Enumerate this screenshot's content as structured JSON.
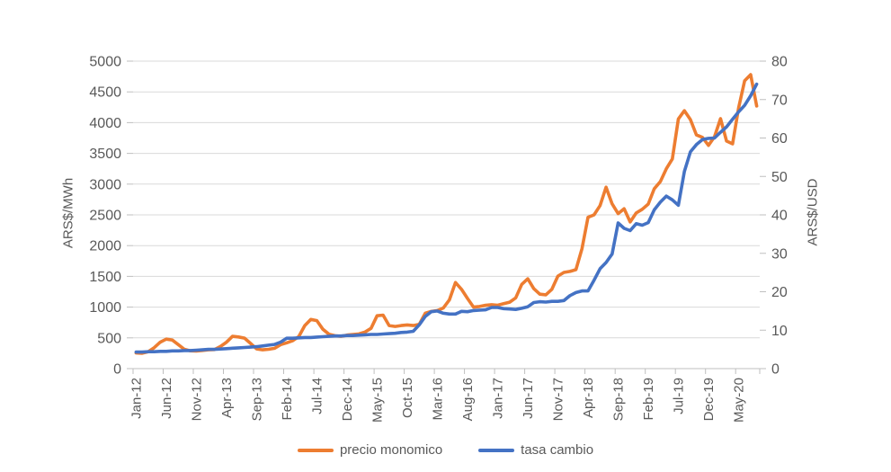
{
  "figure": {
    "background": "#ffffff",
    "text_color": "#595959"
  },
  "chart_data": {
    "type": "line",
    "title": "",
    "xlabel": "",
    "categories": [
      "Jan-12",
      "Feb-12",
      "Mar-12",
      "Apr-12",
      "May-12",
      "Jun-12",
      "Jul-12",
      "Aug-12",
      "Sep-12",
      "Oct-12",
      "Nov-12",
      "Dec-12",
      "Jan-13",
      "Feb-13",
      "Mar-13",
      "Apr-13",
      "May-13",
      "Jun-13",
      "Jul-13",
      "Aug-13",
      "Sep-13",
      "Oct-13",
      "Nov-13",
      "Dec-13",
      "Jan-14",
      "Feb-14",
      "Mar-14",
      "Apr-14",
      "May-14",
      "Jun-14",
      "Jul-14",
      "Aug-14",
      "Sep-14",
      "Oct-14",
      "Nov-14",
      "Dec-14",
      "Jan-15",
      "Feb-15",
      "Mar-15",
      "Apr-15",
      "May-15",
      "Jun-15",
      "Jul-15",
      "Aug-15",
      "Sep-15",
      "Oct-15",
      "Nov-15",
      "Dec-15",
      "Jan-16",
      "Feb-16",
      "Mar-16",
      "Apr-16",
      "May-16",
      "Jun-16",
      "Jul-16",
      "Aug-16",
      "Sep-16",
      "Oct-16",
      "Nov-16",
      "Dec-16",
      "Jan-17",
      "Feb-17",
      "Mar-17",
      "Apr-17",
      "May-17",
      "Jun-17",
      "Jul-17",
      "Aug-17",
      "Sep-17",
      "Oct-17",
      "Nov-17",
      "Dec-17",
      "Jan-18",
      "Feb-18",
      "Mar-18",
      "Apr-18",
      "May-18",
      "Jun-18",
      "Jul-18",
      "Aug-18",
      "Sep-18",
      "Oct-18",
      "Nov-18",
      "Dec-18",
      "Jan-19",
      "Feb-19",
      "Mar-19",
      "Apr-19",
      "May-19",
      "Jun-19",
      "Jul-19",
      "Aug-19",
      "Sep-19",
      "Oct-19",
      "Nov-19",
      "Dec-19",
      "Jan-20",
      "Feb-20",
      "Mar-20",
      "Apr-20",
      "May-20",
      "Jun-20",
      "Jul-20",
      "Aug-20"
    ],
    "x_tick_interval": 5,
    "x_tick_labels": [
      "Jan-12",
      "Jun-12",
      "Nov-12",
      "Apr-13",
      "Sep-13",
      "Feb-14",
      "Jul-14",
      "Dec-14",
      "May-15",
      "Oct-15",
      "Mar-16",
      "Aug-16",
      "Jan-17",
      "Jun-17",
      "Nov-17",
      "Apr-18",
      "Sep-18",
      "Feb-19",
      "Jul-19",
      "Dec-19",
      "May-20"
    ],
    "left_axis": {
      "title": "ARS$/MWh",
      "min": 0,
      "max": 5000,
      "step": 500,
      "tick_labels": [
        "0",
        "500",
        "1000",
        "1500",
        "2000",
        "2500",
        "3000",
        "3500",
        "4000",
        "4500",
        "5000"
      ]
    },
    "right_axis": {
      "title": "ARS$/USD",
      "min": 0,
      "max": 80,
      "step": 10,
      "tick_labels": [
        "0",
        "10",
        "20",
        "30",
        "40",
        "50",
        "60",
        "70",
        "80"
      ]
    },
    "grid": {
      "show": true,
      "color": "#d9d9d9",
      "axis_line_color": "#bfbfbf",
      "label_color": "#595959"
    },
    "legend": {
      "position": "bottom"
    },
    "series": [
      {
        "name": "precio monomico",
        "color": "#ED7D31",
        "axis": "left",
        "values": [
          255,
          250,
          275,
          340,
          430,
          480,
          465,
          390,
          315,
          290,
          285,
          295,
          305,
          310,
          360,
          430,
          525,
          515,
          495,
          410,
          320,
          305,
          315,
          330,
          390,
          420,
          455,
          520,
          700,
          800,
          780,
          640,
          560,
          535,
          525,
          545,
          555,
          565,
          595,
          655,
          860,
          870,
          700,
          685,
          700,
          710,
          700,
          720,
          900,
          930,
          945,
          985,
          1120,
          1400,
          1290,
          1140,
          1000,
          1010,
          1030,
          1040,
          1030,
          1055,
          1080,
          1150,
          1370,
          1460,
          1300,
          1210,
          1200,
          1290,
          1505,
          1565,
          1580,
          1610,
          1950,
          2460,
          2500,
          2650,
          2950,
          2680,
          2520,
          2600,
          2385,
          2530,
          2590,
          2675,
          2925,
          3040,
          3250,
          3410,
          4060,
          4195,
          4050,
          3800,
          3760,
          3630,
          3770,
          4065,
          3700,
          3655,
          4240,
          4680,
          4780,
          4270
        ]
      },
      {
        "name": "tasa cambio",
        "color": "#4472C4",
        "axis": "right",
        "values": [
          4.3,
          4.3,
          4.4,
          4.4,
          4.5,
          4.5,
          4.6,
          4.6,
          4.7,
          4.7,
          4.8,
          4.9,
          5.0,
          5.0,
          5.1,
          5.2,
          5.3,
          5.4,
          5.5,
          5.6,
          5.7,
          5.9,
          6.1,
          6.3,
          6.9,
          7.9,
          7.9,
          8.0,
          8.1,
          8.1,
          8.2,
          8.3,
          8.4,
          8.5,
          8.5,
          8.6,
          8.6,
          8.7,
          8.8,
          8.9,
          8.9,
          9.0,
          9.1,
          9.2,
          9.4,
          9.5,
          9.7,
          11.4,
          13.6,
          14.8,
          15.0,
          14.4,
          14.2,
          14.2,
          14.9,
          14.8,
          15.1,
          15.2,
          15.3,
          15.9,
          15.9,
          15.6,
          15.5,
          15.4,
          15.7,
          16.1,
          17.2,
          17.4,
          17.3,
          17.5,
          17.5,
          17.7,
          19.0,
          19.8,
          20.2,
          20.2,
          23.0,
          26.0,
          27.6,
          29.8,
          37.9,
          36.5,
          35.9,
          37.7,
          37.3,
          38.0,
          41.3,
          43.3,
          44.9,
          43.9,
          42.5,
          51.3,
          56.4,
          58.3,
          59.6,
          59.9,
          60.0,
          61.5,
          62.9,
          64.9,
          66.8,
          68.5,
          71.0,
          74.0
        ]
      }
    ]
  }
}
